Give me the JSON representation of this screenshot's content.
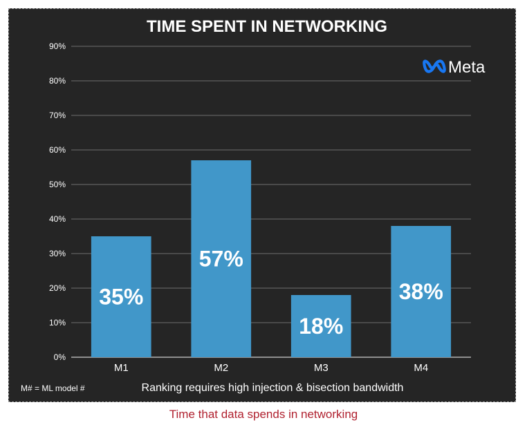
{
  "chart_data": {
    "type": "bar",
    "title": "TIME SPENT IN NETWORKING",
    "categories": [
      "M1",
      "M2",
      "M3",
      "M4"
    ],
    "values": [
      35,
      57,
      18,
      38
    ],
    "data_labels": [
      "35%",
      "57%",
      "18%",
      "38%"
    ],
    "ylim": [
      0,
      90
    ],
    "yticks": [
      0,
      10,
      20,
      30,
      40,
      50,
      60,
      70,
      80,
      90
    ],
    "ytick_labels": [
      "0%",
      "10%",
      "20%",
      "30%",
      "40%",
      "50%",
      "60%",
      "70%",
      "80%",
      "90%"
    ],
    "xlabel": "",
    "ylabel": "",
    "grid": true,
    "bar_color": "#4197c9",
    "background": "#252525"
  },
  "footer": {
    "legend_note": "M# = ML model #",
    "subtitle": "Ranking requires high injection & bisection bandwidth"
  },
  "logo": {
    "text": "Meta",
    "icon": "meta-infinity-icon",
    "color": "#1877f2"
  },
  "caption": "Time that data spends in networking"
}
